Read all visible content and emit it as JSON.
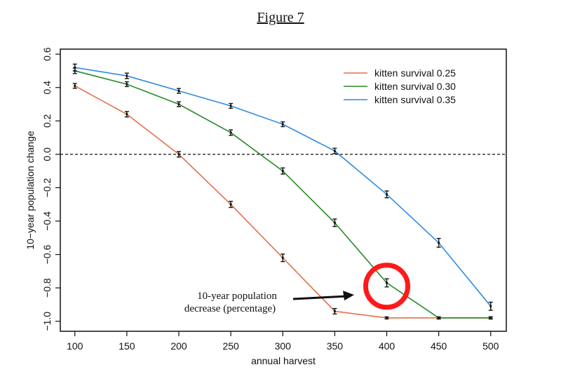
{
  "figure_title": "Figure 7",
  "chart_data": {
    "type": "line",
    "title": "",
    "xlabel": "annual harvest",
    "ylabel": "10−year population change",
    "x": [
      100,
      150,
      200,
      250,
      300,
      350,
      400,
      450,
      500
    ],
    "xticks": [
      "100",
      "150",
      "200",
      "250",
      "300",
      "350",
      "400",
      "450",
      "500"
    ],
    "yticks": [
      "−1.0",
      "−0.8",
      "−0.6",
      "−0.4",
      "−0.2",
      "0.0",
      "0.2",
      "0.4",
      "0.6"
    ],
    "ytick_values": [
      -1.0,
      -0.8,
      -0.6,
      -0.4,
      -0.2,
      0.0,
      0.2,
      0.4,
      0.6
    ],
    "xlim": [
      86,
      515
    ],
    "ylim": [
      -1.06,
      0.63
    ],
    "reference_line": {
      "y": 0.0,
      "style": "dashed"
    },
    "legend_position": "top-right",
    "series": [
      {
        "name": "kitten survival 0.25",
        "color": "#e0704a",
        "values": [
          0.41,
          0.24,
          0.0,
          -0.3,
          -0.62,
          -0.94,
          -0.98,
          -0.98,
          -0.98
        ],
        "errors": [
          0.008,
          0.01,
          0.01,
          0.012,
          0.016,
          0.01,
          0.0,
          0.0,
          0.0
        ]
      },
      {
        "name": "kitten survival 0.30",
        "color": "#2a8a2a",
        "values": [
          0.5,
          0.42,
          0.3,
          0.13,
          -0.1,
          -0.41,
          -0.77,
          -0.98,
          -0.98
        ],
        "errors": [
          0.01,
          0.008,
          0.008,
          0.01,
          0.012,
          0.016,
          0.018,
          0.0,
          0.0
        ]
      },
      {
        "name": "kitten survival 0.35",
        "color": "#2f8be0",
        "values": [
          0.52,
          0.47,
          0.38,
          0.29,
          0.18,
          0.02,
          -0.24,
          -0.53,
          -0.91
        ],
        "errors": [
          0.014,
          0.01,
          0.008,
          0.008,
          0.008,
          0.01,
          0.014,
          0.02,
          0.018
        ]
      }
    ],
    "annotations": [
      {
        "text_lines": [
          "10-year population",
          "decrease (percentage)"
        ],
        "arrow_to": {
          "x": 375,
          "y": -0.8
        }
      },
      {
        "circle_at": {
          "x": 400,
          "y": -0.79
        },
        "color": "#ff1a1a"
      }
    ]
  }
}
